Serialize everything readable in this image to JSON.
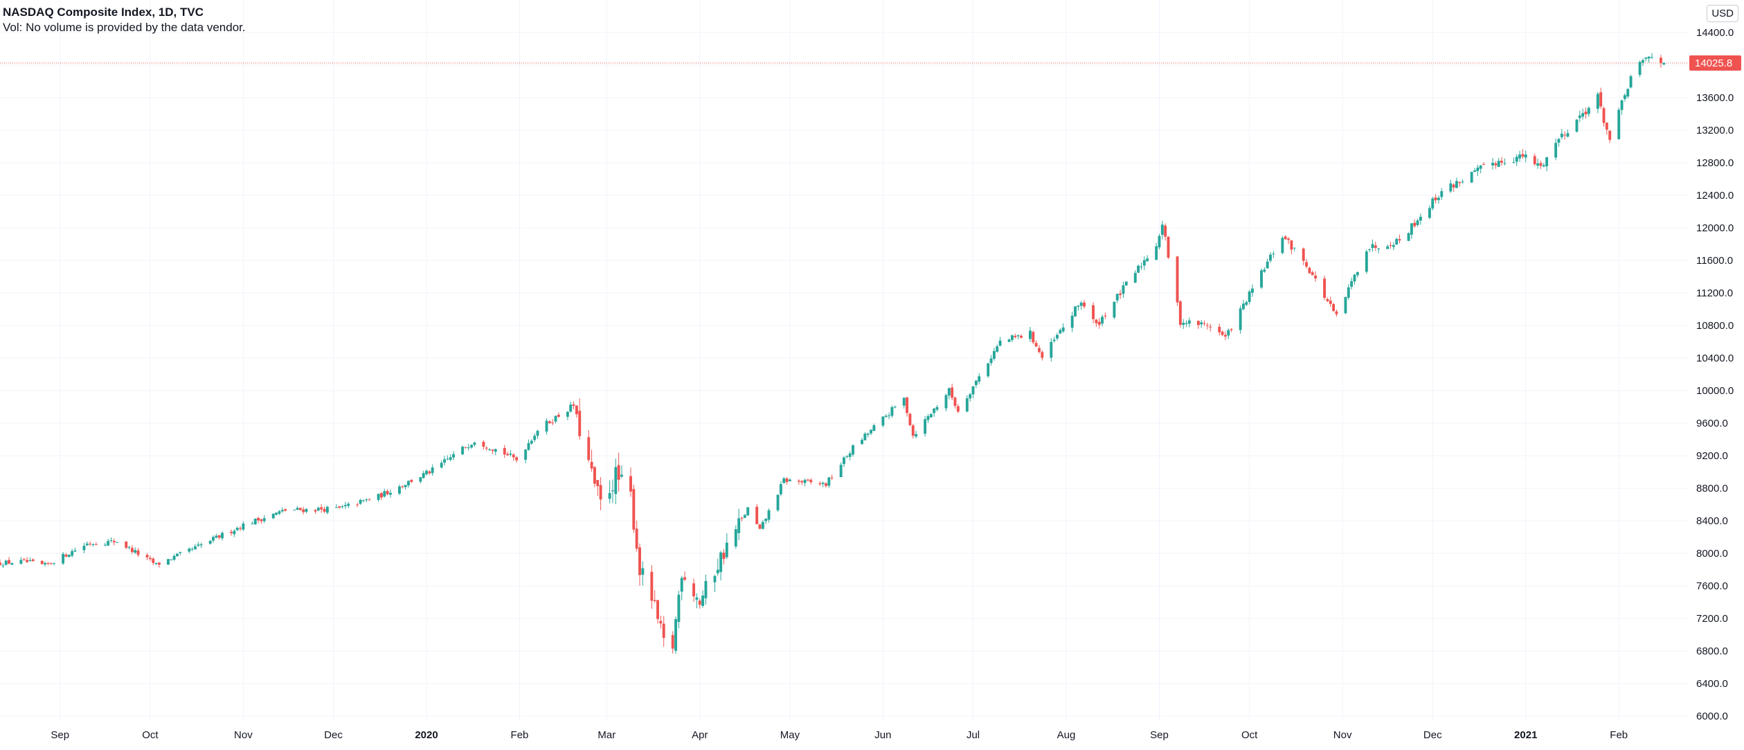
{
  "legend": {
    "title": "NASDAQ Composite Index, 1D, TVC",
    "volume_note": "Vol: No volume is provided by the data vendor."
  },
  "currency_label": "USD",
  "colors": {
    "up": "#26a69a",
    "down": "#ef5350",
    "grid": "#f0f3fa",
    "axis_text": "#131722",
    "last_price": "#ef5350"
  },
  "last_price": {
    "value": 14025.8,
    "label": "14025.8"
  },
  "chart_data": {
    "type": "candlestick",
    "title": "NASDAQ Composite Index, 1D, TVC",
    "xlabel": "",
    "ylabel": "",
    "ylim": [
      5950,
      14800
    ],
    "grid": true,
    "y_ticks": [
      6000,
      6400,
      6800,
      7200,
      7600,
      8000,
      8400,
      8800,
      9200,
      9600,
      10000,
      10400,
      10800,
      11200,
      11600,
      12000,
      12400,
      12800,
      13200,
      13600,
      14000,
      14400
    ],
    "y_tick_labels": [
      "6000.0",
      "6400.0",
      "6800.0",
      "7200.0",
      "7600.0",
      "8000.0",
      "8400.0",
      "8800.0",
      "9200.0",
      "9600.0",
      "10000.0",
      "10400.0",
      "10800.0",
      "11200.0",
      "11600.0",
      "12000.0",
      "12400.0",
      "12800.0",
      "13200.0",
      "13600.0",
      "14000.0",
      "14400.0"
    ],
    "x_ticks": [
      {
        "label": "Sep",
        "date": "2019-09-01",
        "bold": false
      },
      {
        "label": "Oct",
        "date": "2019-10-01",
        "bold": false
      },
      {
        "label": "Nov",
        "date": "2019-11-01",
        "bold": false
      },
      {
        "label": "Dec",
        "date": "2019-12-01",
        "bold": false
      },
      {
        "label": "2020",
        "date": "2020-01-01",
        "bold": true
      },
      {
        "label": "Feb",
        "date": "2020-02-01",
        "bold": false
      },
      {
        "label": "Mar",
        "date": "2020-03-01",
        "bold": false
      },
      {
        "label": "Apr",
        "date": "2020-04-01",
        "bold": false
      },
      {
        "label": "May",
        "date": "2020-05-01",
        "bold": false
      },
      {
        "label": "Jun",
        "date": "2020-06-01",
        "bold": false
      },
      {
        "label": "Jul",
        "date": "2020-07-01",
        "bold": false
      },
      {
        "label": "Aug",
        "date": "2020-08-01",
        "bold": false
      },
      {
        "label": "Sep",
        "date": "2020-09-01",
        "bold": false
      },
      {
        "label": "Oct",
        "date": "2020-10-01",
        "bold": false
      },
      {
        "label": "Nov",
        "date": "2020-11-01",
        "bold": false
      },
      {
        "label": "Dec",
        "date": "2020-12-01",
        "bold": false
      },
      {
        "label": "2021",
        "date": "2021-01-01",
        "bold": true
      },
      {
        "label": "Feb",
        "date": "2021-02-01",
        "bold": false
      }
    ],
    "x_range": [
      "2019-08-12",
      "2021-02-24"
    ],
    "price_path": [
      [
        "2019-08-12",
        7880
      ],
      [
        "2019-08-20",
        7900
      ],
      [
        "2019-08-27",
        7850
      ],
      [
        "2019-09-10",
        8120
      ],
      [
        "2019-09-20",
        8150
      ],
      [
        "2019-10-03",
        7860
      ],
      [
        "2019-10-15",
        8050
      ],
      [
        "2019-11-01",
        8350
      ],
      [
        "2019-11-15",
        8530
      ],
      [
        "2019-12-03",
        8550
      ],
      [
        "2019-12-16",
        8700
      ],
      [
        "2020-01-03",
        9020
      ],
      [
        "2020-01-17",
        9390
      ],
      [
        "2020-01-27",
        9230
      ],
      [
        "2020-01-31",
        9150
      ],
      [
        "2020-02-07",
        9520
      ],
      [
        "2020-02-19",
        9820
      ],
      [
        "2020-02-25",
        8950
      ],
      [
        "2020-02-28",
        8600
      ],
      [
        "2020-03-04",
        8950
      ],
      [
        "2020-03-09",
        8700
      ],
      [
        "2020-03-12",
        7800
      ],
      [
        "2020-03-16",
        7450
      ],
      [
        "2020-03-20",
        6900
      ],
      [
        "2020-03-23",
        6860
      ],
      [
        "2020-03-26",
        7800
      ],
      [
        "2020-04-01",
        7400
      ],
      [
        "2020-04-08",
        7950
      ],
      [
        "2020-04-17",
        8550
      ],
      [
        "2020-04-21",
        8280
      ],
      [
        "2020-04-29",
        8900
      ],
      [
        "2020-05-13",
        8850
      ],
      [
        "2020-05-22",
        9300
      ],
      [
        "2020-06-08",
        9900
      ],
      [
        "2020-06-11",
        9450
      ],
      [
        "2020-06-23",
        10000
      ],
      [
        "2020-06-26",
        9750
      ],
      [
        "2020-07-10",
        10600
      ],
      [
        "2020-07-20",
        10700
      ],
      [
        "2020-07-24",
        10400
      ],
      [
        "2020-08-06",
        11100
      ],
      [
        "2020-08-11",
        10800
      ],
      [
        "2020-08-31",
        11800
      ],
      [
        "2020-09-02",
        12050
      ],
      [
        "2020-09-08",
        10850
      ],
      [
        "2020-09-18",
        10800
      ],
      [
        "2020-09-23",
        10650
      ],
      [
        "2020-10-12",
        11900
      ],
      [
        "2020-10-20",
        11550
      ],
      [
        "2020-10-30",
        10900
      ],
      [
        "2020-11-09",
        11750
      ],
      [
        "2020-11-20",
        11850
      ],
      [
        "2020-12-04",
        12450
      ],
      [
        "2020-12-21",
        12800
      ],
      [
        "2020-12-31",
        12880
      ],
      [
        "2021-01-06",
        12750
      ],
      [
        "2021-01-12",
        13100
      ],
      [
        "2021-01-25",
        13600
      ],
      [
        "2021-01-29",
        13070
      ],
      [
        "2021-02-05",
        13850
      ],
      [
        "2021-02-10",
        14080
      ],
      [
        "2021-02-12",
        14095
      ],
      [
        "2021-02-16",
        14025.8
      ]
    ]
  }
}
